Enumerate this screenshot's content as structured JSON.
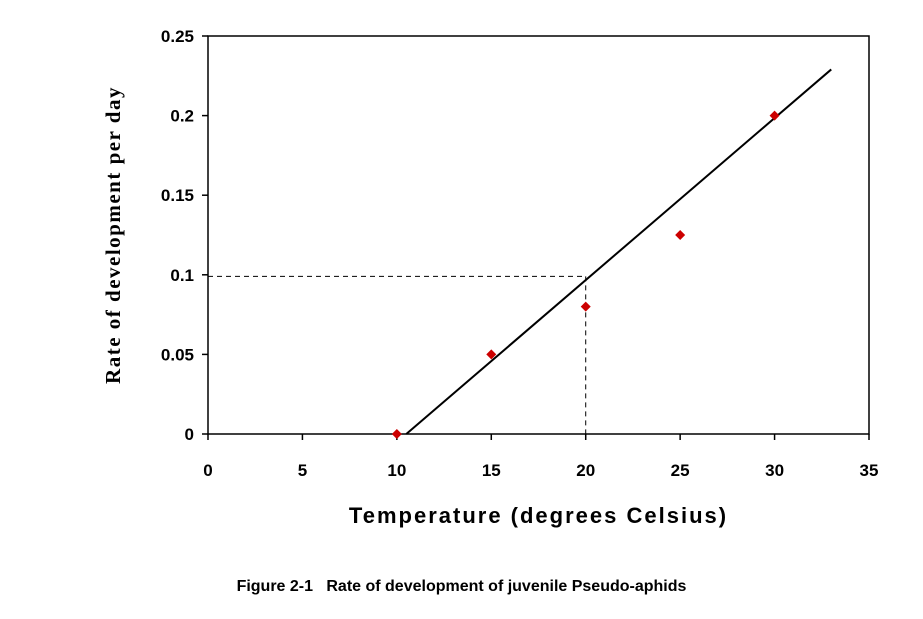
{
  "chart_data": {
    "type": "scatter",
    "xlabel": "Temperature (degrees Celsius)",
    "ylabel": "Rate of development per day",
    "xlim": [
      0,
      35
    ],
    "ylim": [
      0,
      0.25
    ],
    "x_ticks": [
      "0",
      "5",
      "10",
      "15",
      "20",
      "25",
      "30",
      "35"
    ],
    "y_ticks": [
      "0",
      "0.05",
      "0.1",
      "0.15",
      "0.2",
      "0.25"
    ],
    "grid": false,
    "points": [
      {
        "x": 10,
        "y": 0
      },
      {
        "x": 15,
        "y": 0.05
      },
      {
        "x": 20,
        "y": 0.08
      },
      {
        "x": 25,
        "y": 0.125
      },
      {
        "x": 30,
        "y": 0.2
      }
    ],
    "trend_line": {
      "from": {
        "x": 10.5,
        "y": 0
      },
      "to": {
        "x": 33,
        "y": 0.229
      }
    },
    "reference_lines": {
      "x": 20,
      "y": 0.099
    },
    "colors": {
      "points": "#cc0000",
      "line": "#000000"
    }
  },
  "caption": "Figure 2-1   Rate of development of juvenile Pseudo-aphids"
}
